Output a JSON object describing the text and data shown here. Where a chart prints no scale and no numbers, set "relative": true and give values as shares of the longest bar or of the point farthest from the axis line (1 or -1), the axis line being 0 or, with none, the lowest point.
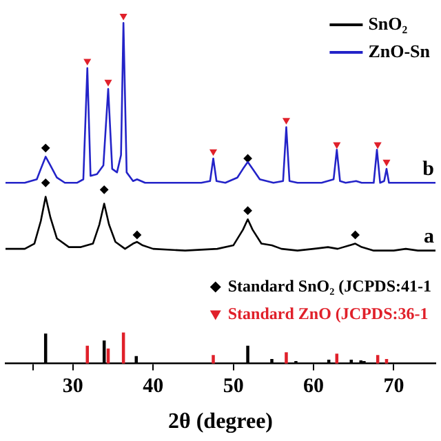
{
  "chart_data": {
    "type": "line",
    "relative": true,
    "xlabel": "2θ (degree)",
    "xlim": [
      21.6,
      75.2
    ],
    "xticks": [
      {
        "value": 25,
        "label": null
      },
      30,
      40,
      50,
      60,
      70
    ],
    "tick_labels": "x",
    "legend": "top right",
    "grid": false,
    "annotations": [
      "b",
      "a"
    ],
    "series": [
      {
        "name": "SnO₂",
        "color": "#000000",
        "marker": "none",
        "x": [
          21.6,
          24,
          25.2,
          26,
          26.6,
          27.2,
          28,
          29.5,
          31,
          32.5,
          33.3,
          33.9,
          34.5,
          35.3,
          36.5,
          37.5,
          38,
          38.7,
          40,
          44,
          48,
          50,
          51.2,
          51.8,
          52.4,
          53.5,
          54.8,
          56,
          58,
          60,
          61.8,
          63,
          64.5,
          65.2,
          66,
          67.5,
          70,
          71.5,
          73,
          75.2
        ],
        "values": [
          0.33,
          0.33,
          0.345,
          0.41,
          0.48,
          0.42,
          0.36,
          0.335,
          0.335,
          0.345,
          0.4,
          0.46,
          0.4,
          0.35,
          0.33,
          0.345,
          0.35,
          0.34,
          0.33,
          0.325,
          0.33,
          0.34,
          0.385,
          0.415,
          0.385,
          0.345,
          0.34,
          0.33,
          0.325,
          0.33,
          0.335,
          0.33,
          0.34,
          0.345,
          0.335,
          0.325,
          0.325,
          0.33,
          0.325,
          0.325
        ]
      },
      {
        "name": "ZnO-Sn",
        "color": "#2323c8",
        "marker": "none",
        "x": [
          21.6,
          24,
          25.5,
          26,
          26.6,
          27.2,
          28,
          29,
          30.5,
          31.3,
          31.8,
          32.2,
          33,
          33.8,
          34.4,
          34.9,
          35.5,
          36,
          36.3,
          36.7,
          37.5,
          38,
          39,
          42,
          46,
          47.1,
          47.5,
          47.9,
          49,
          50.5,
          51.2,
          51.8,
          52.4,
          53.3,
          55,
          56.2,
          56.6,
          57,
          58,
          61,
          62.5,
          62.9,
          63.3,
          64,
          65.3,
          66,
          67.5,
          67.9,
          68.3,
          68.8,
          69.1,
          69.4,
          71,
          73,
          75.2
        ],
        "values": [
          0.52,
          0.52,
          0.53,
          0.56,
          0.595,
          0.57,
          0.535,
          0.52,
          0.52,
          0.53,
          0.85,
          0.54,
          0.545,
          0.57,
          0.79,
          0.56,
          0.55,
          0.6,
          0.98,
          0.55,
          0.525,
          0.53,
          0.52,
          0.52,
          0.52,
          0.525,
          0.59,
          0.525,
          0.52,
          0.535,
          0.56,
          0.58,
          0.56,
          0.53,
          0.52,
          0.525,
          0.68,
          0.525,
          0.52,
          0.52,
          0.53,
          0.615,
          0.525,
          0.52,
          0.525,
          0.52,
          0.52,
          0.615,
          0.52,
          0.525,
          0.56,
          0.52,
          0.52,
          0.52,
          0.52
        ]
      },
      {
        "type": "bar",
        "color": "#000000",
        "x": [
          26.6,
          33.9,
          37.9,
          51.8,
          54.8,
          57.8,
          61.9,
          64.7,
          65.9,
          66.3
        ],
        "values": [
          0.085,
          0.065,
          0.02,
          0.05,
          0.012,
          0.006,
          0.01,
          0.01,
          0.008,
          0.006
        ]
      },
      {
        "type": "bar",
        "color": "#e0202a",
        "x": [
          31.8,
          34.4,
          36.3,
          47.5,
          56.6,
          62.9,
          68.0,
          69.1
        ],
        "values": [
          0.05,
          0.042,
          0.088,
          0.023,
          0.031,
          0.027,
          0.023,
          0.012
        ]
      },
      {
        "name": "Standard SnO₂ (JCPDS:41-1",
        "type": "scatter",
        "color": "#000000",
        "marker": "diamond",
        "x": [
          26.6,
          51.8,
          26.6,
          33.9,
          38,
          51.8,
          65.2
        ],
        "values": [
          0.62,
          0.59,
          0.52,
          0.5,
          0.37,
          0.44,
          0.37
        ]
      },
      {
        "name": "Standard ZnO (JCPDS:36-1",
        "type": "scatter",
        "color": "#e0202a",
        "marker": "triangle",
        "x": [
          31.8,
          34.4,
          36.3,
          47.5,
          56.6,
          62.9,
          68,
          69.1
        ],
        "values": [
          0.87,
          0.81,
          1.0,
          0.61,
          0.7,
          0.63,
          0.63,
          0.58
        ]
      }
    ]
  }
}
